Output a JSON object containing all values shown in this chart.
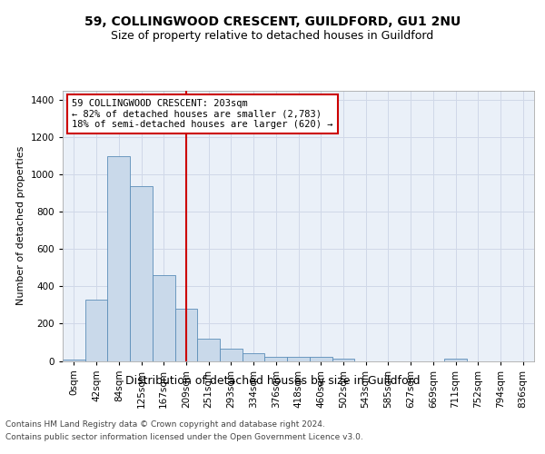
{
  "title1": "59, COLLINGWOOD CRESCENT, GUILDFORD, GU1 2NU",
  "title2": "Size of property relative to detached houses in Guildford",
  "xlabel": "Distribution of detached houses by size in Guildford",
  "ylabel": "Number of detached properties",
  "footer1": "Contains HM Land Registry data © Crown copyright and database right 2024.",
  "footer2": "Contains public sector information licensed under the Open Government Licence v3.0.",
  "bar_labels": [
    "0sqm",
    "42sqm",
    "84sqm",
    "125sqm",
    "167sqm",
    "209sqm",
    "251sqm",
    "293sqm",
    "334sqm",
    "376sqm",
    "418sqm",
    "460sqm",
    "502sqm",
    "543sqm",
    "585sqm",
    "627sqm",
    "669sqm",
    "711sqm",
    "752sqm",
    "794sqm",
    "836sqm"
  ],
  "bar_values": [
    5,
    330,
    1100,
    940,
    460,
    280,
    120,
    65,
    40,
    20,
    20,
    20,
    10,
    0,
    0,
    0,
    0,
    10,
    0,
    0,
    0
  ],
  "bar_color": "#c9d9ea",
  "bar_edge_color": "#5b8db8",
  "grid_color": "#d0d8e8",
  "background_color": "#eaf0f8",
  "vline_x_index": 5,
  "vline_color": "#cc0000",
  "annotation_text": "59 COLLINGWOOD CRESCENT: 203sqm\n← 82% of detached houses are smaller (2,783)\n18% of semi-detached houses are larger (620) →",
  "annotation_box_color": "#ffffff",
  "annotation_box_edge": "#cc0000",
  "ylim": [
    0,
    1450
  ],
  "yticks": [
    0,
    200,
    400,
    600,
    800,
    1000,
    1200,
    1400
  ],
  "title1_fontsize": 10,
  "title2_fontsize": 9,
  "xlabel_fontsize": 9,
  "ylabel_fontsize": 8,
  "tick_fontsize": 7.5,
  "annotation_fontsize": 7.5,
  "footer_fontsize": 6.5
}
